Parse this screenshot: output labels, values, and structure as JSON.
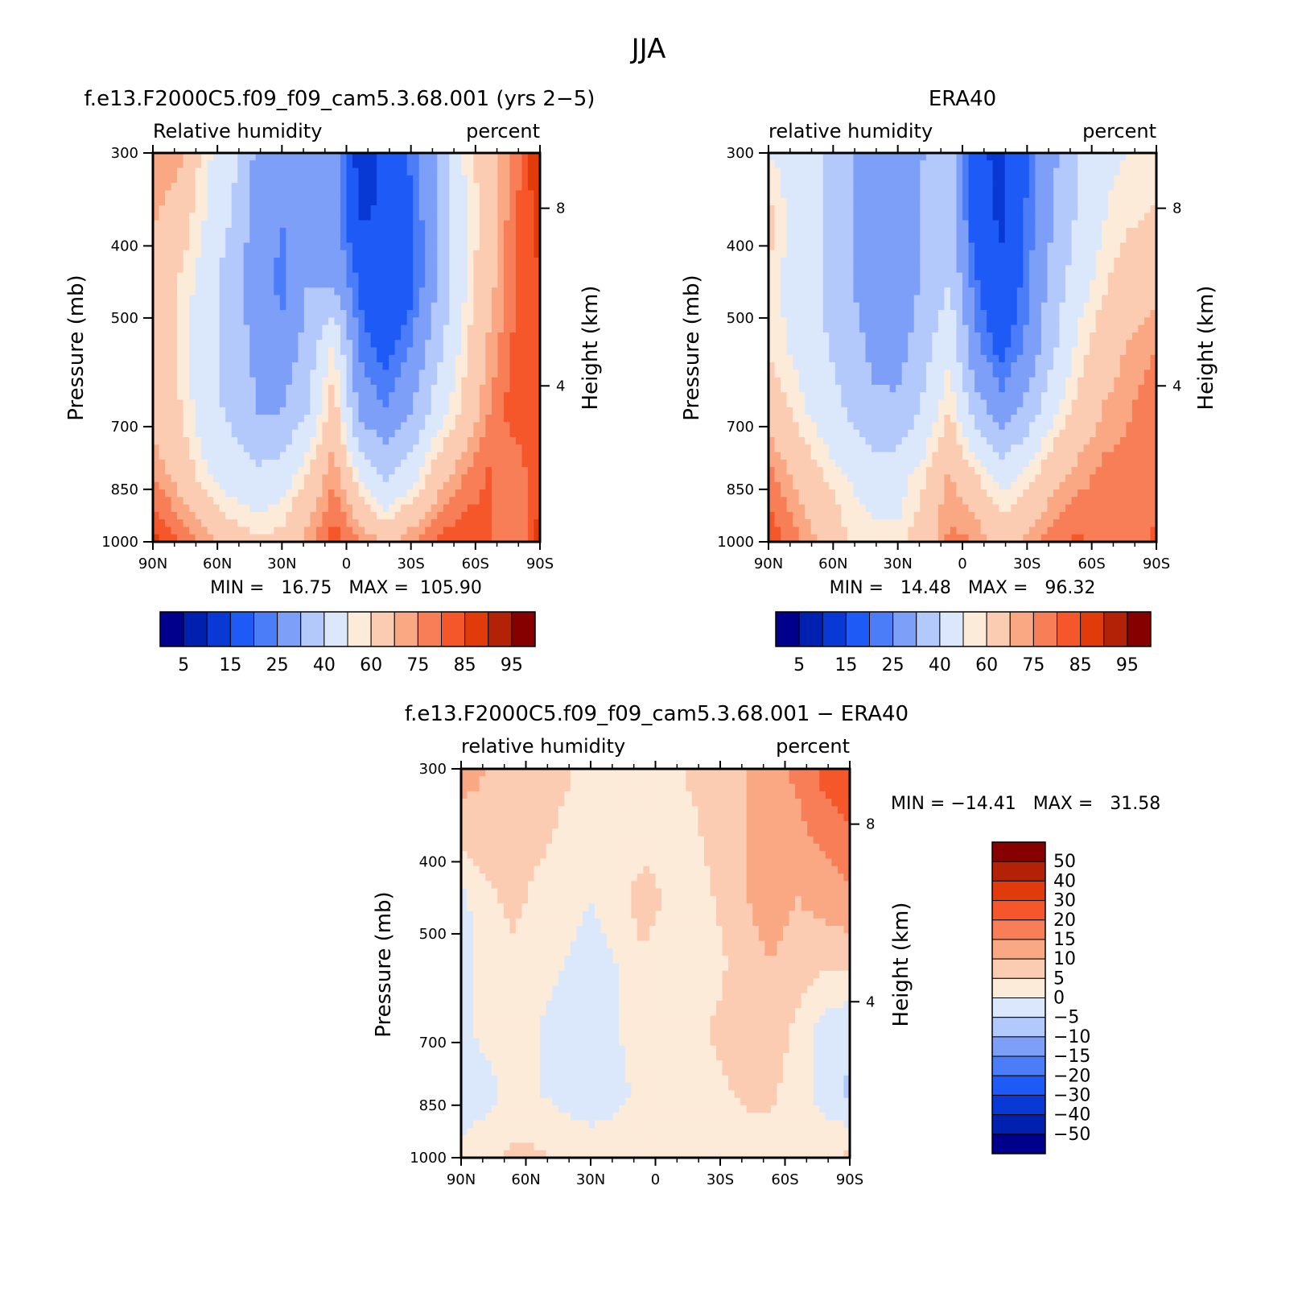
{
  "figure": {
    "title": "JJA"
  },
  "chart_data": [
    {
      "type": "heatmap",
      "title": "f.e13.F2000C5.f09_f09_cam5.3.68.001 (yrs 2−5)",
      "left_string": "Relative humidity",
      "right_string": "percent",
      "ylabel": "Pressure (mb)",
      "right_axis_label": "Height (km)",
      "x_ticks": [
        "90N",
        "60N",
        "30N",
        "0",
        "30S",
        "60S",
        "90S"
      ],
      "x_values": [
        90,
        60,
        30,
        0,
        -30,
        -60,
        -90
      ],
      "xlim": [
        90,
        -90
      ],
      "y_ticks": [
        "300",
        "400",
        "500",
        "700",
        "850",
        "1000"
      ],
      "y_values": [
        300,
        400,
        500,
        700,
        850,
        1000
      ],
      "ylim": [
        300,
        1000
      ],
      "y_scale": "log",
      "right_ticks": [
        "8",
        "4"
      ],
      "right_tick_pressures": [
        356,
        617
      ],
      "stats": "MIN =   16.75   MAX =  105.90",
      "min": 16.75,
      "max": 105.9,
      "colorbar": {
        "orientation": "horizontal",
        "labels": [
          "5",
          "15",
          "25",
          "40",
          "60",
          "75",
          "85",
          "95"
        ],
        "colors": [
          "#00008c",
          "#0021b0",
          "#0839d4",
          "#1e5af5",
          "#4a7df7",
          "#7e9ff8",
          "#b3c8fb",
          "#dbe8fc",
          "#fdebd9",
          "#fcccb2",
          "#f9a883",
          "#f77e57",
          "#f5572a",
          "#e13b0c",
          "#b32107",
          "#870000"
        ]
      },
      "field": {
        "rows": [
          [
            80,
            78,
            62,
            55,
            38,
            36,
            30,
            38,
            10,
            18,
            26,
            40,
            60,
            70,
            82,
            96
          ],
          [
            76,
            70,
            60,
            50,
            36,
            30,
            38,
            35,
            14,
            16,
            24,
            38,
            58,
            70,
            84,
            92
          ],
          [
            72,
            65,
            56,
            44,
            35,
            28,
            40,
            38,
            24,
            15,
            22,
            40,
            58,
            72,
            84,
            90
          ],
          [
            70,
            64,
            54,
            46,
            38,
            32,
            44,
            62,
            28,
            22,
            30,
            46,
            62,
            76,
            86,
            90
          ],
          [
            72,
            66,
            55,
            48,
            40,
            40,
            50,
            70,
            38,
            30,
            40,
            55,
            66,
            80,
            88,
            90
          ],
          [
            80,
            72,
            62,
            56,
            52,
            55,
            66,
            80,
            60,
            48,
            56,
            70,
            80,
            86,
            80,
            90
          ],
          [
            92,
            86,
            78,
            70,
            66,
            68,
            78,
            88,
            82,
            72,
            80,
            86,
            90,
            86,
            80,
            92
          ]
        ]
      }
    },
    {
      "type": "heatmap",
      "title": "ERA40",
      "left_string": "relative humidity",
      "right_string": "percent",
      "ylabel": "Pressure (mb)",
      "right_axis_label": "Height (km)",
      "x_ticks": [
        "90N",
        "60N",
        "30N",
        "0",
        "30S",
        "60S",
        "90S"
      ],
      "x_values": [
        90,
        60,
        30,
        0,
        -30,
        -60,
        -90
      ],
      "xlim": [
        90,
        -90
      ],
      "y_ticks": [
        "300",
        "400",
        "500",
        "700",
        "850",
        "1000"
      ],
      "y_values": [
        300,
        400,
        500,
        700,
        850,
        1000
      ],
      "ylim": [
        300,
        1000
      ],
      "y_scale": "log",
      "right_ticks": [
        "8",
        "4"
      ],
      "right_tick_pressures": [
        356,
        617
      ],
      "stats": "MIN =   14.48   MAX =   96.32",
      "min": 14.48,
      "max": 96.32,
      "colorbar": {
        "orientation": "horizontal",
        "labels": [
          "5",
          "15",
          "25",
          "40",
          "60",
          "75",
          "85",
          "95"
        ],
        "colors": [
          "#00008c",
          "#0021b0",
          "#0839d4",
          "#1e5af5",
          "#4a7df7",
          "#7e9ff8",
          "#b3c8fb",
          "#dbe8fc",
          "#fdebd9",
          "#fcccb2",
          "#f9a883",
          "#f77e57",
          "#f5572a",
          "#e13b0c",
          "#b32107",
          "#870000"
        ]
      },
      "field": {
        "rows": [
          [
            60,
            56,
            50,
            42,
            36,
            32,
            40,
            48,
            16,
            14,
            24,
            38,
            50,
            58,
            60,
            62
          ],
          [
            68,
            56,
            50,
            42,
            34,
            30,
            42,
            48,
            18,
            14,
            26,
            40,
            52,
            60,
            64,
            66
          ],
          [
            64,
            56,
            50,
            42,
            34,
            32,
            42,
            50,
            26,
            16,
            28,
            44,
            56,
            64,
            70,
            72
          ],
          [
            64,
            58,
            52,
            46,
            38,
            36,
            46,
            58,
            32,
            22,
            32,
            48,
            62,
            70,
            76,
            80
          ],
          [
            72,
            64,
            56,
            50,
            42,
            42,
            52,
            66,
            46,
            34,
            44,
            58,
            68,
            76,
            80,
            84
          ],
          [
            82,
            74,
            66,
            60,
            56,
            56,
            64,
            76,
            66,
            56,
            62,
            72,
            78,
            82,
            82,
            84
          ],
          [
            90,
            82,
            74,
            66,
            62,
            62,
            70,
            82,
            80,
            72,
            76,
            84,
            86,
            82,
            80,
            86
          ]
        ]
      }
    },
    {
      "type": "heatmap",
      "title": "f.e13.F2000C5.f09_f09_cam5.3.68.001 − ERA40",
      "left_string": "relative humidity",
      "right_string": "percent",
      "ylabel": "Pressure (mb)",
      "right_axis_label": "Height (km)",
      "x_ticks": [
        "90N",
        "60N",
        "30N",
        "0",
        "30S",
        "60S",
        "90S"
      ],
      "x_values": [
        90,
        60,
        30,
        0,
        -30,
        -60,
        -90
      ],
      "xlim": [
        90,
        -90
      ],
      "y_ticks": [
        "300",
        "400",
        "500",
        "700",
        "850",
        "1000"
      ],
      "y_values": [
        300,
        400,
        500,
        700,
        850,
        1000
      ],
      "ylim": [
        300,
        1000
      ],
      "y_scale": "log",
      "right_ticks": [
        "8",
        "4"
      ],
      "right_tick_pressures": [
        356,
        617
      ],
      "stats": "MIN = −14.41   MAX =   31.58",
      "min": -14.41,
      "max": 31.58,
      "colorbar": {
        "orientation": "vertical",
        "labels": [
          "50",
          "40",
          "30",
          "20",
          "15",
          "10",
          "5",
          "0",
          "−5",
          "−10",
          "−15",
          "−20",
          "−30",
          "−40",
          "−50"
        ],
        "colors": [
          "#00008c",
          "#0021b0",
          "#0839d4",
          "#1e5af5",
          "#4a7df7",
          "#7e9ff8",
          "#b3c8fb",
          "#dbe8fc",
          "#fdebd9",
          "#fcccb2",
          "#f9a883",
          "#f77e57",
          "#f5572a",
          "#e13b0c",
          "#b32107",
          "#870000"
        ]
      },
      "field": {
        "rows": [
          [
            12,
            10,
            8,
            8,
            6,
            2,
            2,
            2,
            4,
            6,
            8,
            10,
            14,
            16,
            22,
            28
          ],
          [
            8,
            8,
            6,
            6,
            4,
            0,
            0,
            2,
            2,
            4,
            8,
            10,
            12,
            14,
            16,
            18
          ],
          [
            -2,
            4,
            6,
            4,
            2,
            0,
            2,
            8,
            4,
            2,
            6,
            10,
            12,
            10,
            12,
            14
          ],
          [
            -2,
            2,
            4,
            2,
            0,
            -2,
            0,
            4,
            2,
            2,
            4,
            8,
            10,
            8,
            6,
            6
          ],
          [
            -2,
            2,
            4,
            0,
            -2,
            -2,
            0,
            2,
            2,
            4,
            6,
            8,
            8,
            4,
            -2,
            -4
          ],
          [
            -4,
            -2,
            2,
            0,
            -2,
            -4,
            -2,
            2,
            2,
            4,
            4,
            6,
            6,
            2,
            -2,
            -6
          ],
          [
            2,
            4,
            6,
            6,
            4,
            4,
            4,
            2,
            2,
            0,
            4,
            2,
            2,
            2,
            4,
            6
          ]
        ]
      }
    }
  ]
}
